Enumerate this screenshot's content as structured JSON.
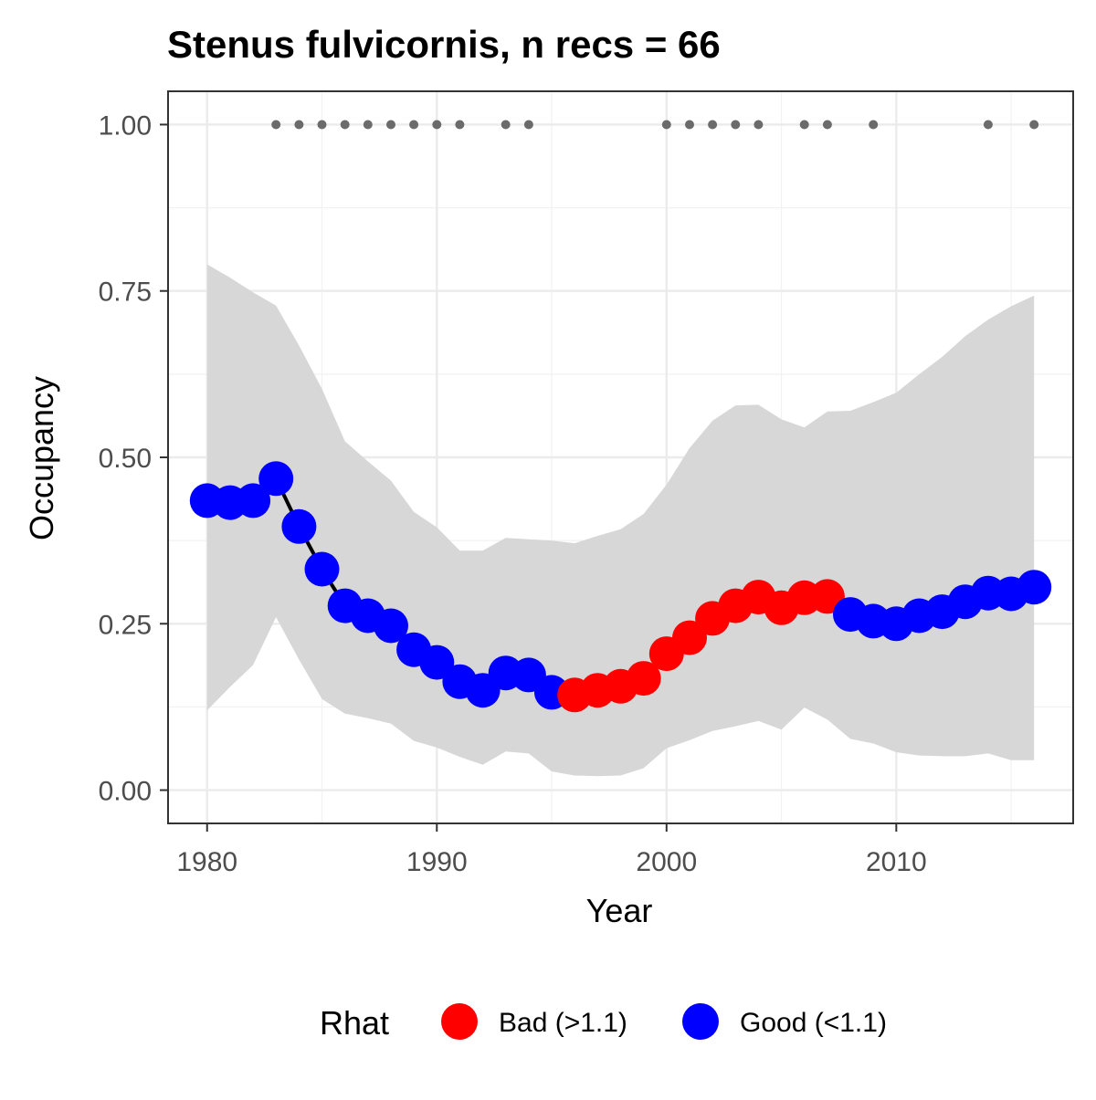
{
  "chart_data": {
    "type": "line",
    "title": "Stenus fulvicornis, n recs = 66",
    "xlabel": "Year",
    "ylabel": "Occupancy",
    "xlim": [
      1978.3,
      2017.7
    ],
    "ylim": [
      -0.05,
      1.05
    ],
    "x_ticks": [
      1980,
      1990,
      2000,
      2010
    ],
    "x_tick_labels": [
      "1980",
      "1990",
      "2000",
      "2010"
    ],
    "y_ticks": [
      0,
      0.25,
      0.5,
      0.75,
      1.0
    ],
    "y_tick_labels": [
      "0.00",
      "0.25",
      "0.50",
      "0.75",
      "1.00"
    ],
    "grid": true,
    "legend": {
      "title": "Rhat",
      "position": "bottom",
      "entries": [
        {
          "label": "Bad (>1.1)",
          "color": "#ff0000"
        },
        {
          "label": "Good (<1.1)",
          "color": "#0000ff"
        }
      ]
    },
    "colors": {
      "bad": "#ff0000",
      "good": "#0000ff",
      "ribbon": "#d6d6d6",
      "line": "#000000",
      "record_points": "#6b6b6b"
    },
    "series": {
      "year": [
        1980,
        1981,
        1982,
        1983,
        1984,
        1985,
        1986,
        1987,
        1988,
        1989,
        1990,
        1991,
        1992,
        1993,
        1994,
        1995,
        1996,
        1997,
        1998,
        1999,
        2000,
        2001,
        2002,
        2003,
        2004,
        2005,
        2006,
        2007,
        2008,
        2009,
        2010,
        2011,
        2012,
        2013,
        2014,
        2015,
        2016
      ],
      "occupancy": [
        0.435,
        0.432,
        0.435,
        0.468,
        0.396,
        0.332,
        0.277,
        0.262,
        0.247,
        0.211,
        0.192,
        0.163,
        0.15,
        0.176,
        0.173,
        0.147,
        0.143,
        0.15,
        0.156,
        0.168,
        0.205,
        0.229,
        0.258,
        0.277,
        0.29,
        0.274,
        0.289,
        0.291,
        0.264,
        0.254,
        0.25,
        0.262,
        0.268,
        0.283,
        0.296,
        0.295,
        0.305
      ],
      "lower": [
        0.12,
        0.155,
        0.188,
        0.26,
        0.196,
        0.137,
        0.115,
        0.108,
        0.1,
        0.074,
        0.064,
        0.05,
        0.038,
        0.058,
        0.055,
        0.028,
        0.022,
        0.021,
        0.022,
        0.033,
        0.063,
        0.075,
        0.089,
        0.096,
        0.104,
        0.091,
        0.124,
        0.106,
        0.077,
        0.07,
        0.057,
        0.052,
        0.051,
        0.051,
        0.055,
        0.045,
        0.045
      ],
      "upper": [
        0.79,
        0.77,
        0.748,
        0.728,
        0.668,
        0.603,
        0.524,
        0.494,
        0.465,
        0.418,
        0.395,
        0.36,
        0.36,
        0.379,
        0.377,
        0.375,
        0.371,
        0.382,
        0.392,
        0.415,
        0.459,
        0.514,
        0.555,
        0.578,
        0.579,
        0.557,
        0.545,
        0.569,
        0.57,
        0.583,
        0.597,
        0.625,
        0.651,
        0.682,
        0.707,
        0.727,
        0.743
      ],
      "rhat": [
        "Good",
        "Good",
        "Good",
        "Good",
        "Good",
        "Good",
        "Good",
        "Good",
        "Good",
        "Good",
        "Good",
        "Good",
        "Good",
        "Good",
        "Good",
        "Good",
        "Bad",
        "Bad",
        "Bad",
        "Bad",
        "Bad",
        "Bad",
        "Bad",
        "Bad",
        "Bad",
        "Bad",
        "Bad",
        "Bad",
        "Good",
        "Good",
        "Good",
        "Good",
        "Good",
        "Good",
        "Good",
        "Good",
        "Good"
      ]
    },
    "record_years": [
      1983,
      1984,
      1985,
      1986,
      1987,
      1988,
      1989,
      1990,
      1991,
      1993,
      1994,
      2000,
      2001,
      2002,
      2003,
      2004,
      2006,
      2007,
      2009,
      2014,
      2016
    ],
    "record_value": 1.0
  }
}
